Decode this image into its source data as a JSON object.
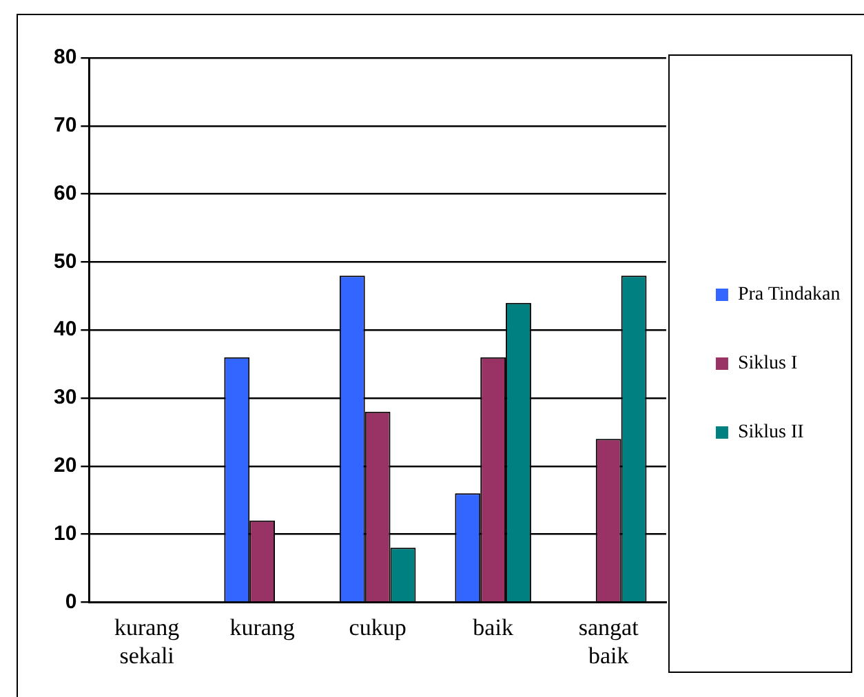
{
  "chart_data": {
    "type": "bar",
    "categories": [
      "kurang sekali",
      "kurang",
      "cukup",
      "baik",
      "sangat baik"
    ],
    "series": [
      {
        "name": "Pra Tindakan",
        "color": "#3366ff",
        "values": [
          0,
          36,
          48,
          16,
          0
        ]
      },
      {
        "name": "Siklus I",
        "color": "#993366",
        "values": [
          0,
          12,
          28,
          36,
          24
        ]
      },
      {
        "name": "Siklus II",
        "color": "#008080",
        "values": [
          0,
          0,
          8,
          44,
          48
        ]
      }
    ],
    "ylim": [
      0,
      80
    ],
    "yticks": [
      0,
      10,
      20,
      30,
      40,
      50,
      60,
      70,
      80
    ],
    "grid": "y",
    "legend": "right"
  }
}
